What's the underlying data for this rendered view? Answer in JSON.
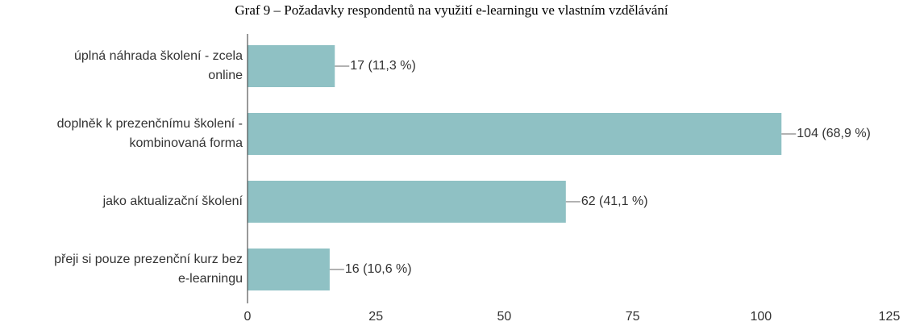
{
  "chart_data": {
    "type": "bar",
    "orientation": "horizontal",
    "title": "Graf 9  –  Požadavky respondentů na využití e-learningu ve vlastním vzdělávání",
    "categories": [
      "úplná náhrada školení - zcela online",
      "doplněk k prezenčnímu školení - kombinovaná forma",
      "jako aktualizační školení",
      "přeji si pouze prezenční kurz bez e-learningu"
    ],
    "values": [
      17,
      104,
      62,
      16
    ],
    "value_labels": [
      "17 (11,3 %)",
      "104 (68,9 %)",
      "62 (41,1 %)",
      "16 (10,6 %)"
    ],
    "color": "#8fc1c4",
    "xlim": [
      0,
      125
    ],
    "xticks": [
      0,
      25,
      50,
      75,
      100,
      125
    ],
    "grid": false
  }
}
